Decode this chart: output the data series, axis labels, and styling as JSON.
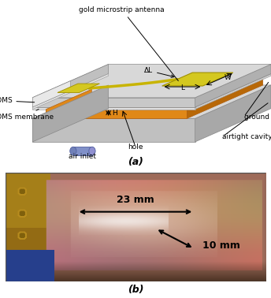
{
  "fig_width": 3.44,
  "fig_height": 3.78,
  "dpi": 100,
  "caption_a": "(a)",
  "caption_b": "(b)",
  "label_gold": "gold microstrip antenna",
  "label_pdms": "PDMS",
  "label_pdms_mem": "PDMS membrane",
  "label_air_inlet": "air inlet",
  "label_hole": "hole",
  "label_airtight": "airtight cavity",
  "label_ground": "ground plane",
  "label_L": "L",
  "label_W": "W",
  "label_dL": "ΔL",
  "label_H": "H",
  "label_23mm": "23 mm",
  "label_10mm": "10 mm",
  "text_fontsize": 6.5,
  "caption_fontsize": 9
}
